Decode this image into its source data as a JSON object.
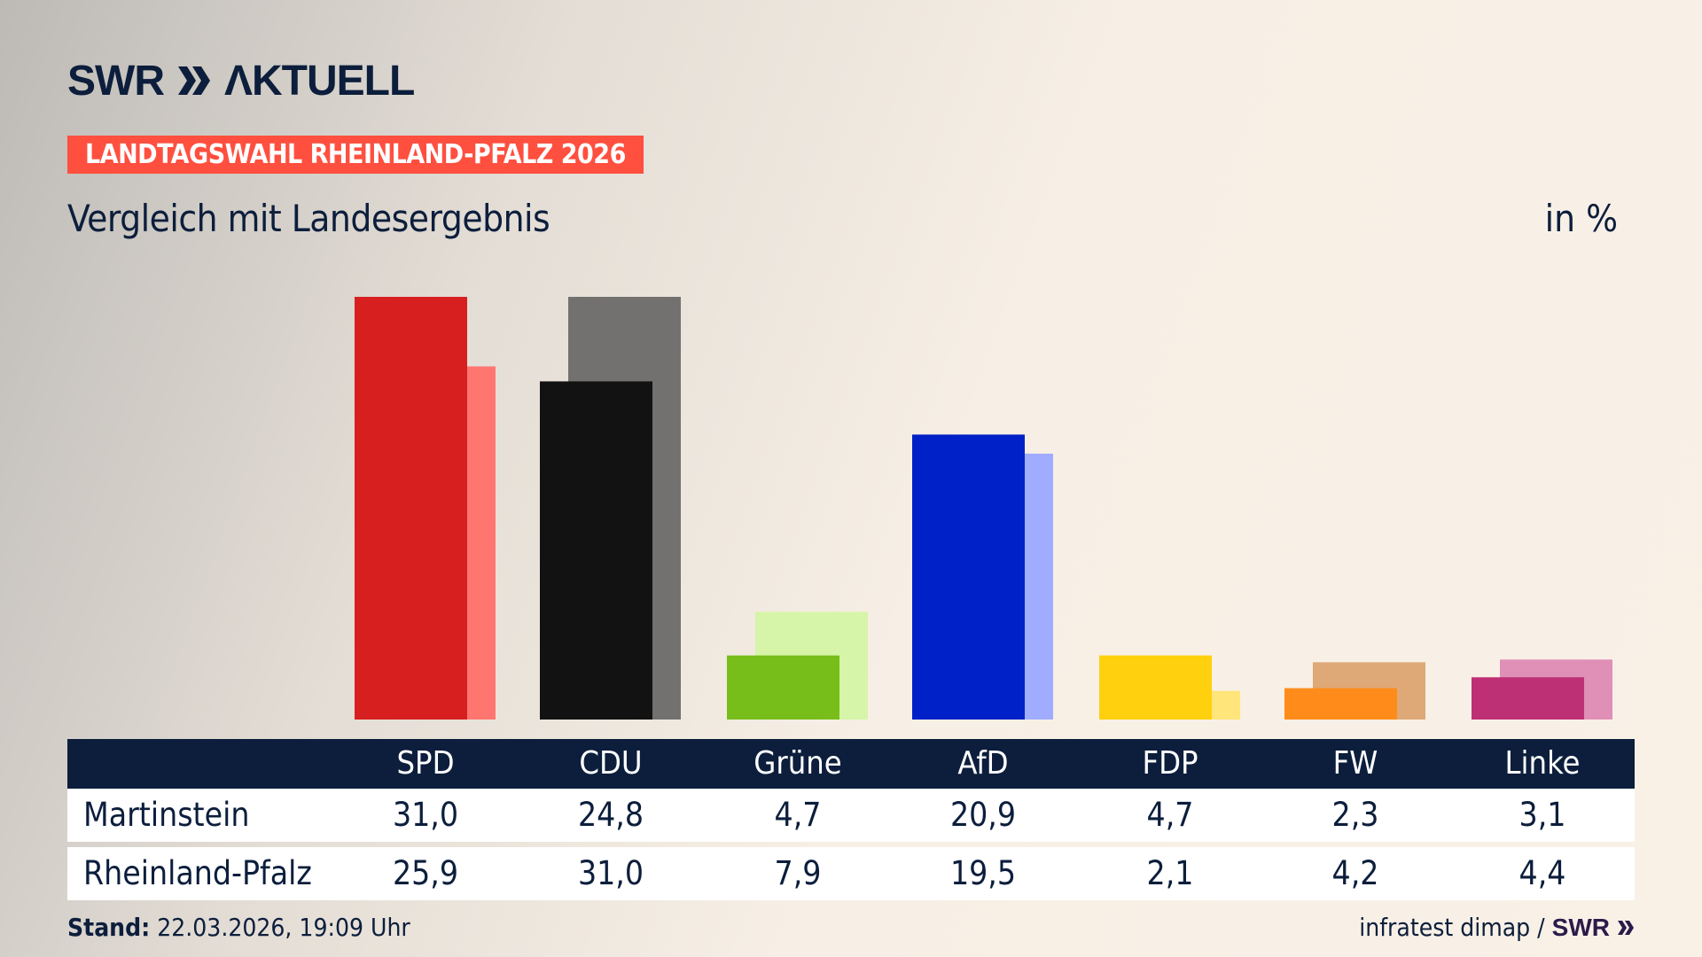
{
  "logo": {
    "text": "SWR AKTUELL"
  },
  "badge": "LANDTAGSWAHL RHEINLAND-PFALZ 2026",
  "subtitle": "Vergleich mit Landesergebnis",
  "unit": "in %",
  "chart_data": {
    "type": "bar",
    "categories": [
      "SPD",
      "CDU",
      "Grüne",
      "AfD",
      "FDP",
      "FW",
      "Linke"
    ],
    "series": [
      {
        "name": "Martinstein",
        "values": [
          31.0,
          24.8,
          4.7,
          20.9,
          4.7,
          2.3,
          3.1
        ],
        "colors": [
          "#d71f1f",
          "#121212",
          "#78be1a",
          "#0021c7",
          "#ffd00e",
          "#ff8c1a",
          "#be3075"
        ]
      },
      {
        "name": "Rheinland-Pfalz",
        "values": [
          25.9,
          31.0,
          7.9,
          19.5,
          2.1,
          4.2,
          4.4
        ],
        "colors": [
          "#ff7670",
          "#737170",
          "#d6f5a8",
          "#a0acff",
          "#ffe57a",
          "#dfa877",
          "#e08fb7"
        ]
      }
    ],
    "ylim": [
      0,
      31
    ],
    "grid": false
  },
  "table": {
    "headers": [
      "SPD",
      "CDU",
      "Grüne",
      "AfD",
      "FDP",
      "FW",
      "Linke"
    ],
    "rows": [
      {
        "label": "Martinstein",
        "values": [
          "31,0",
          "24,8",
          "4,7",
          "20,9",
          "4,7",
          "2,3",
          "3,1"
        ]
      },
      {
        "label": "Rheinland-Pfalz",
        "values": [
          "25,9",
          "31,0",
          "7,9",
          "19,5",
          "2,1",
          "4,2",
          "4,4"
        ]
      }
    ]
  },
  "footer": {
    "stand_label": "Stand:",
    "stand_value": "22.03.2026, 19:09 Uhr",
    "source": "infratest dimap /",
    "source_logo": "SWR"
  },
  "colors": {
    "navy": "#0c1e3c",
    "badge": "#ff4f3f"
  }
}
